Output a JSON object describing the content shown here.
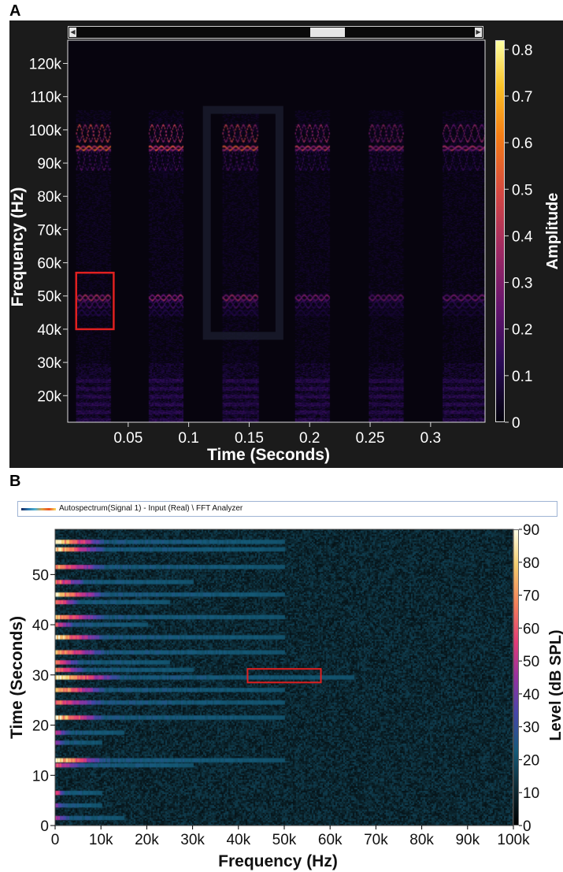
{
  "panels": {
    "a_label": "A",
    "b_label": "B",
    "b_analyzer_title": "Autospectrum(Signal 1) - Input (Real) \\ FFT Analyzer"
  },
  "chart_data": [
    {
      "type": "heatmap",
      "panel": "A",
      "title": "",
      "xlabel": "Time (Seconds)",
      "ylabel": "Frequency (Hz)",
      "colorbar_label": "Amplitude",
      "colormap": "inferno",
      "xlim": [
        0,
        0.345
      ],
      "ylim": [
        12000,
        127000
      ],
      "xticks": [
        0.05,
        0.1,
        0.15,
        0.2,
        0.25,
        0.3
      ],
      "xtick_labels": [
        "0.05",
        "0.1",
        "0.15",
        "0.2",
        "0.25",
        "0.3"
      ],
      "yticks": [
        20000,
        30000,
        40000,
        50000,
        60000,
        70000,
        80000,
        90000,
        100000,
        110000,
        120000
      ],
      "ytick_labels": [
        "20k",
        "30k",
        "40k",
        "50k",
        "60k",
        "70k",
        "80k",
        "90k",
        "100k",
        "110k",
        "120k"
      ],
      "colorbar_range": [
        0,
        0.82
      ],
      "colorbar_ticks": [
        0,
        0.1,
        0.2,
        0.3,
        0.4,
        0.5,
        0.6,
        0.7,
        0.8
      ],
      "colorbar_tick_labels": [
        "0",
        "0.1",
        "0.2",
        "0.3",
        "0.4",
        "0.5",
        "0.6",
        "0.7",
        "0.8"
      ],
      "calls": [
        {
          "t_start": 0.007,
          "t_end": 0.035,
          "peak_amplitude": 0.8
        },
        {
          "t_start": 0.067,
          "t_end": 0.095,
          "peak_amplitude": 0.7
        },
        {
          "t_start": 0.128,
          "t_end": 0.157,
          "peak_amplitude": 0.75
        },
        {
          "t_start": 0.188,
          "t_end": 0.216,
          "peak_amplitude": 0.6
        },
        {
          "t_start": 0.249,
          "t_end": 0.277,
          "peak_amplitude": 0.55
        },
        {
          "t_start": 0.31,
          "t_end": 0.345,
          "peak_amplitude": 0.55
        }
      ],
      "bands": [
        {
          "f_center": 99000,
          "f_mod": 2500,
          "intensity": 0.75
        },
        {
          "f_center": 94500,
          "f_mod": 600,
          "intensity": 0.85
        },
        {
          "f_center": 91000,
          "f_mod": 3000,
          "intensity": 0.35
        },
        {
          "f_center": 49500,
          "f_mod": 800,
          "intensity": 0.6
        },
        {
          "f_center": 47500,
          "f_mod": 1000,
          "intensity": 0.3
        },
        {
          "f_center": 45000,
          "f_mod": 800,
          "intensity": 0.18
        }
      ],
      "highlight_box": {
        "t_range": [
          0.007,
          0.038
        ],
        "f_range": [
          40000,
          57000
        ],
        "color": "#e02020"
      },
      "viewport_box": {
        "t_range": [
          0.115,
          0.175
        ],
        "f_range": [
          38000,
          106000
        ],
        "color": "#1a1d2e"
      }
    },
    {
      "type": "heatmap",
      "panel": "B",
      "title": "",
      "xlabel": "Frequency (Hz)",
      "ylabel": "Time (Seconds)",
      "colorbar_label": "Level (dB SPL)",
      "colormap": "cubehelix-like",
      "xlim": [
        0,
        100000
      ],
      "ylim": [
        0,
        59
      ],
      "xticks": [
        0,
        10000,
        20000,
        30000,
        40000,
        50000,
        60000,
        70000,
        80000,
        90000,
        100000
      ],
      "xtick_labels": [
        "0",
        "10k",
        "20k",
        "30k",
        "40k",
        "50k",
        "60k",
        "70k",
        "80k",
        "90k",
        "100k"
      ],
      "yticks": [
        0,
        10,
        20,
        30,
        40,
        50
      ],
      "ytick_labels": [
        "0",
        "10",
        "20",
        "30",
        "40",
        "50"
      ],
      "colorbar_range": [
        0,
        90
      ],
      "colorbar_ticks": [
        0,
        10,
        20,
        30,
        40,
        50,
        60,
        70,
        80,
        90
      ],
      "colorbar_tick_labels": [
        "0",
        "10",
        "20",
        "30",
        "40",
        "50",
        "60",
        "70",
        "80",
        "90"
      ],
      "call_rows": [
        {
          "time": 56.5,
          "peak_db": 82,
          "extent_hz": 50000
        },
        {
          "time": 55.0,
          "peak_db": 78,
          "extent_hz": 50000
        },
        {
          "time": 51.5,
          "peak_db": 70,
          "extent_hz": 50000
        },
        {
          "time": 48.5,
          "peak_db": 62,
          "extent_hz": 30000
        },
        {
          "time": 46.0,
          "peak_db": 80,
          "extent_hz": 50000
        },
        {
          "time": 44.5,
          "peak_db": 65,
          "extent_hz": 25000
        },
        {
          "time": 41.5,
          "peak_db": 72,
          "extent_hz": 50000
        },
        {
          "time": 40.0,
          "peak_db": 55,
          "extent_hz": 20000
        },
        {
          "time": 37.5,
          "peak_db": 80,
          "extent_hz": 50000
        },
        {
          "time": 34.5,
          "peak_db": 72,
          "extent_hz": 50000
        },
        {
          "time": 32.5,
          "peak_db": 60,
          "extent_hz": 25000
        },
        {
          "time": 31.0,
          "peak_db": 65,
          "extent_hz": 30000
        },
        {
          "time": 29.5,
          "peak_db": 86,
          "extent_hz": 65000
        },
        {
          "time": 27.0,
          "peak_db": 75,
          "extent_hz": 50000
        },
        {
          "time": 24.5,
          "peak_db": 60,
          "extent_hz": 50000
        },
        {
          "time": 21.5,
          "peak_db": 80,
          "extent_hz": 50000
        },
        {
          "time": 18.5,
          "peak_db": 45,
          "extent_hz": 15000
        },
        {
          "time": 16.5,
          "peak_db": 40,
          "extent_hz": 10000
        },
        {
          "time": 13.0,
          "peak_db": 84,
          "extent_hz": 50000
        },
        {
          "time": 12.0,
          "peak_db": 55,
          "extent_hz": 30000
        },
        {
          "time": 6.5,
          "peak_db": 55,
          "extent_hz": 10000
        },
        {
          "time": 4.0,
          "peak_db": 40,
          "extent_hz": 10000
        },
        {
          "time": 1.5,
          "peak_db": 45,
          "extent_hz": 15000
        }
      ],
      "highlight_box": {
        "f_range": [
          42000,
          58000
        ],
        "t_range": [
          28.5,
          31.2
        ],
        "color": "#e02020"
      }
    }
  ]
}
